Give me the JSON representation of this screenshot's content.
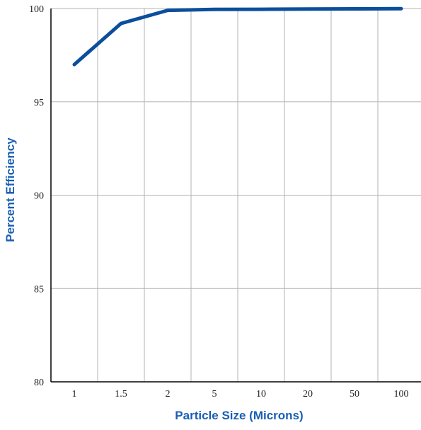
{
  "chart_data": {
    "type": "line",
    "title": "",
    "xlabel": "Particle Size (Microns)",
    "ylabel": "Percent Efficiency",
    "x_scale": "categorical",
    "categories": [
      "1",
      "1.5",
      "2",
      "5",
      "10",
      "20",
      "50",
      "100"
    ],
    "yticks": [
      "80",
      "85",
      "90",
      "95",
      "100"
    ],
    "ylim": [
      80,
      100
    ],
    "grid": true,
    "legend": "none",
    "series": [
      {
        "x": [
          1,
          1.5,
          2,
          5,
          10,
          20,
          50,
          100
        ],
        "y": [
          97.0,
          99.2,
          99.9,
          99.95,
          99.96,
          99.97,
          99.98,
          99.99
        ],
        "color": "#0b4f9c"
      }
    ],
    "colors": {
      "line": "#0b4f9c",
      "axis_title": "#1a5fb4",
      "grid": "#b3b3b3",
      "axis": "#000000"
    }
  }
}
